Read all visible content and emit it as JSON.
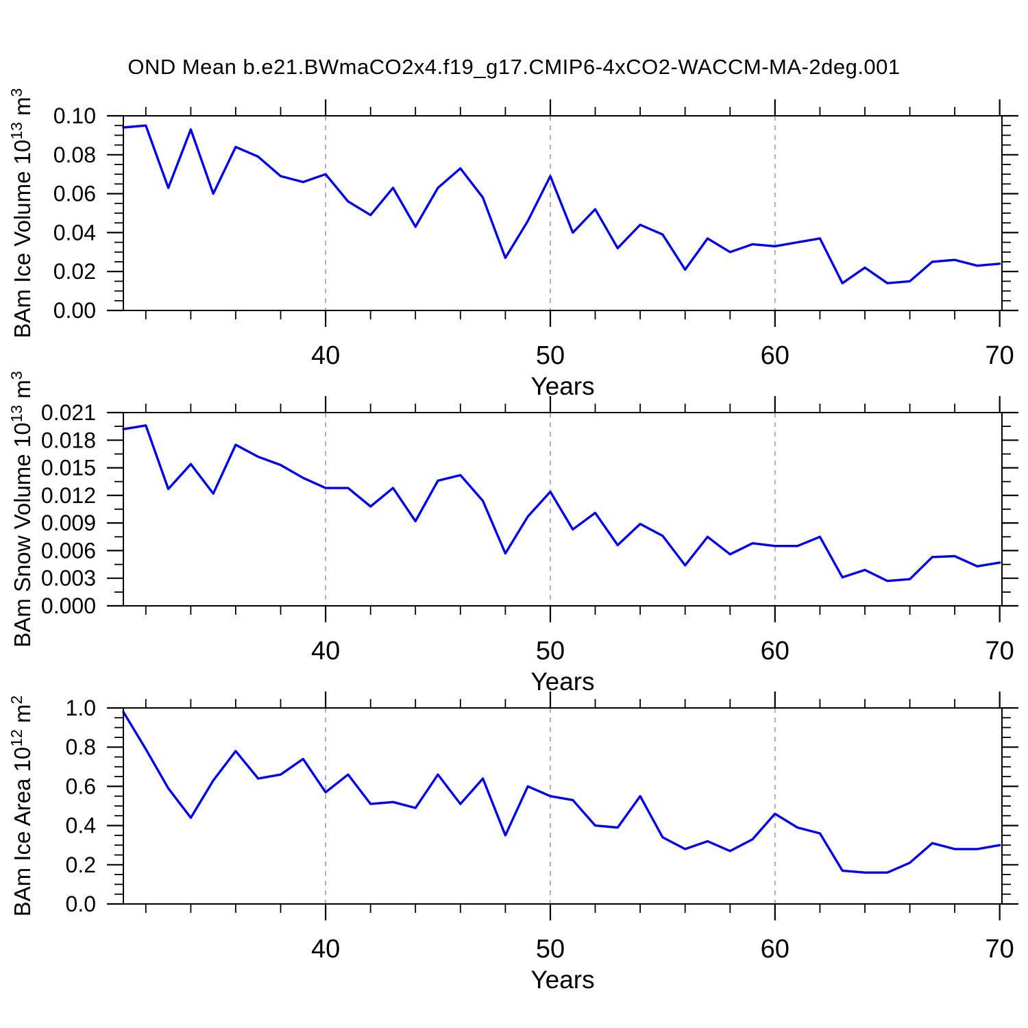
{
  "title": "OND Mean b.e21.BWmaCO2x4.f19_g17.CMIP6-4xCO2-WACCM-MA-2deg.001",
  "colors": {
    "line": "#0000EE",
    "grid": "#A9A9A9",
    "axis": "#000000"
  },
  "chart_data": [
    {
      "type": "line",
      "ylabel": {
        "text": "BAm Ice Volume",
        "power_base": "10",
        "power_exp": "13",
        "unit": "m",
        "unit_exp": "3"
      },
      "ylabel_plain": "BAm Ice Volume 10^13 m^3",
      "xlabel": "Years",
      "x": [
        31,
        32,
        33,
        34,
        35,
        36,
        37,
        38,
        39,
        40,
        41,
        42,
        43,
        44,
        45,
        46,
        47,
        48,
        49,
        50,
        51,
        52,
        53,
        54,
        55,
        56,
        57,
        58,
        59,
        60,
        61,
        62,
        63,
        64,
        65,
        66,
        67,
        68,
        69,
        70
      ],
      "values": [
        0.094,
        0.095,
        0.063,
        0.093,
        0.06,
        0.084,
        0.079,
        0.069,
        0.066,
        0.07,
        0.056,
        0.049,
        0.063,
        0.043,
        0.063,
        0.073,
        0.058,
        0.027,
        0.046,
        0.069,
        0.04,
        0.052,
        0.032,
        0.044,
        0.039,
        0.021,
        0.037,
        0.03,
        0.034,
        0.033,
        0.035,
        0.037,
        0.014,
        0.022,
        0.014,
        0.015,
        0.025,
        0.026,
        0.023,
        0.024
      ],
      "ylim": [
        0,
        0.1
      ],
      "ytick_values": [
        0,
        0.02,
        0.04,
        0.06,
        0.08,
        0.1
      ],
      "ytick_labels": [
        "0.00",
        "0.02",
        "0.04",
        "0.06",
        "0.08",
        "0.10"
      ],
      "ytick_minor_step": 0.005,
      "xlim": [
        31,
        70.1
      ],
      "xticks": [
        40,
        50,
        60,
        70
      ],
      "xtick_labels": [
        "40",
        "50",
        "60",
        "70"
      ],
      "xtick_minor_step": 2,
      "grid_x": [
        40,
        50,
        60
      ],
      "grid_style": "dashed"
    },
    {
      "type": "line",
      "ylabel": {
        "text": "BAm Snow Volume",
        "power_base": "10",
        "power_exp": "13",
        "unit": "m",
        "unit_exp": "3"
      },
      "ylabel_plain": "BAm Snow Volume 10^13 m^3",
      "xlabel": "Years",
      "x": [
        31,
        32,
        33,
        34,
        35,
        36,
        37,
        38,
        39,
        40,
        41,
        42,
        43,
        44,
        45,
        46,
        47,
        48,
        49,
        50,
        51,
        52,
        53,
        54,
        55,
        56,
        57,
        58,
        59,
        60,
        61,
        62,
        63,
        64,
        65,
        66,
        67,
        68,
        69,
        70
      ],
      "values": [
        0.0192,
        0.0196,
        0.0127,
        0.0154,
        0.0122,
        0.0175,
        0.0162,
        0.0153,
        0.0139,
        0.0128,
        0.0128,
        0.0108,
        0.0128,
        0.0092,
        0.0136,
        0.0142,
        0.0114,
        0.0057,
        0.0097,
        0.0124,
        0.0083,
        0.0101,
        0.0066,
        0.0089,
        0.0076,
        0.0044,
        0.0075,
        0.0056,
        0.0068,
        0.0065,
        0.0065,
        0.0075,
        0.0031,
        0.0039,
        0.0027,
        0.0029,
        0.0053,
        0.0054,
        0.0043,
        0.0047
      ],
      "ylim": [
        0,
        0.021
      ],
      "ytick_values": [
        0,
        0.003,
        0.006,
        0.009,
        0.012,
        0.015,
        0.018,
        0.021
      ],
      "ytick_labels": [
        "0.000",
        "0.003",
        "0.006",
        "0.009",
        "0.012",
        "0.015",
        "0.018",
        "0.021"
      ],
      "ytick_minor_step": 0.0015,
      "xlim": [
        31,
        70.1
      ],
      "xticks": [
        40,
        50,
        60,
        70
      ],
      "xtick_labels": [
        "40",
        "50",
        "60",
        "70"
      ],
      "xtick_minor_step": 2,
      "grid_x": [
        40,
        50,
        60
      ],
      "grid_style": "dashed"
    },
    {
      "type": "line",
      "ylabel": {
        "text": "BAm Ice Area",
        "power_base": "10",
        "power_exp": "12",
        "unit": "m",
        "unit_exp": "2"
      },
      "ylabel_plain": "BAm Ice Area 10^12 m^2",
      "xlabel": "Years",
      "x": [
        31,
        32,
        33,
        34,
        35,
        36,
        37,
        38,
        39,
        40,
        41,
        42,
        43,
        44,
        45,
        46,
        47,
        48,
        49,
        50,
        51,
        52,
        53,
        54,
        55,
        56,
        57,
        58,
        59,
        60,
        61,
        62,
        63,
        64,
        65,
        66,
        67,
        68,
        69,
        70
      ],
      "values": [
        0.98,
        0.79,
        0.59,
        0.44,
        0.63,
        0.78,
        0.64,
        0.66,
        0.74,
        0.57,
        0.66,
        0.51,
        0.52,
        0.49,
        0.66,
        0.51,
        0.64,
        0.35,
        0.6,
        0.55,
        0.53,
        0.4,
        0.39,
        0.55,
        0.34,
        0.28,
        0.32,
        0.27,
        0.33,
        0.46,
        0.39,
        0.36,
        0.17,
        0.16,
        0.16,
        0.21,
        0.31,
        0.28,
        0.28,
        0.3
      ],
      "ylim": [
        0,
        1.0
      ],
      "ytick_values": [
        0,
        0.2,
        0.4,
        0.6,
        0.8,
        1.0
      ],
      "ytick_labels": [
        "0.0",
        "0.2",
        "0.4",
        "0.6",
        "0.8",
        "1.0"
      ],
      "ytick_minor_step": 0.05,
      "xlim": [
        31,
        70.1
      ],
      "xticks": [
        40,
        50,
        60,
        70
      ],
      "xtick_labels": [
        "40",
        "50",
        "60",
        "70"
      ],
      "xtick_minor_step": 2,
      "grid_x": [
        40,
        50,
        60
      ],
      "grid_style": "dashed"
    }
  ]
}
